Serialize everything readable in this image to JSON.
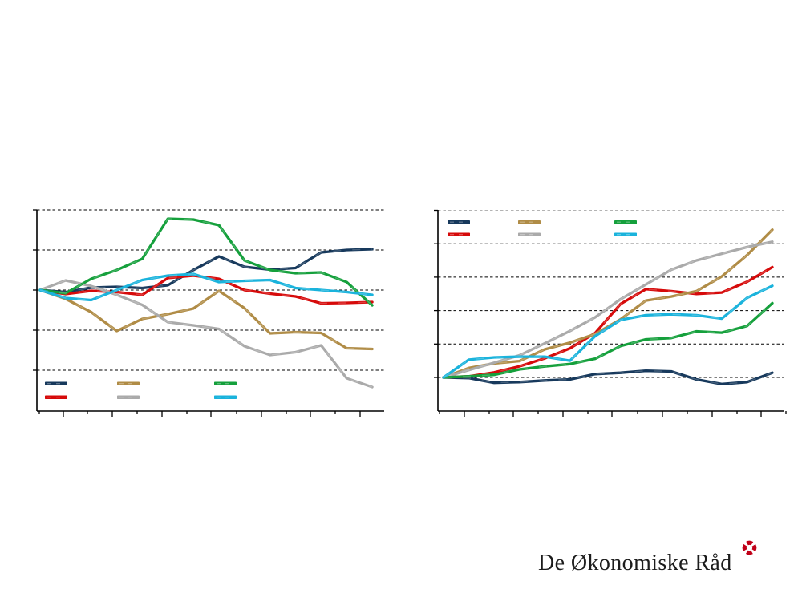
{
  "background_color": "#ffffff",
  "colors": {
    "dark_blue": "#17395c",
    "red": "#d60a0a",
    "tan": "#b08c46",
    "gray": "#aaaaaa",
    "green": "#15a03c",
    "cyan": "#1ab3dc"
  },
  "logo": {
    "text": "De Økonomiske Råd",
    "icon": "life-ring-icon",
    "icon_color": "#c00018",
    "text_color": "#1c1c1c"
  },
  "chart_data": [
    {
      "id": "left",
      "type": "line",
      "title": "",
      "xlabel": "",
      "ylabel": "",
      "x": [
        1,
        2,
        3,
        4,
        5,
        6,
        7,
        8,
        9,
        10,
        11,
        12,
        13,
        14
      ],
      "x_axis": {
        "tick_labels_visible": false,
        "major_tick_count": 7,
        "minor_tick_count": 7
      },
      "y_axis": {
        "tick_labels_visible": false,
        "unit": "gridline spacings relative to baseline",
        "gridlines_at_units": [
          2,
          1,
          0,
          -1,
          -2
        ],
        "gray_gridlines_at_units": []
      },
      "grid": "horizontal-dashed",
      "legend": {
        "position": "inside-bottom-left",
        "labels_visible": false,
        "entries": [
          "dark_blue",
          "red",
          "tan",
          "gray",
          "green",
          "cyan"
        ]
      },
      "note": "axes have tick marks but no visible numeric or text labels",
      "series": [
        {
          "name": "dark-blue",
          "color_key": "dark_blue",
          "values": [
            0,
            -0.05,
            0.06,
            0.08,
            0.05,
            0.12,
            0.5,
            0.84,
            0.58,
            0.51,
            0.55,
            0.94,
            1.0,
            1.02
          ]
        },
        {
          "name": "red",
          "color_key": "red",
          "values": [
            0,
            -0.1,
            -0.02,
            -0.05,
            -0.12,
            0.3,
            0.36,
            0.28,
            0.0,
            -0.09,
            -0.16,
            -0.33,
            -0.32,
            -0.3
          ]
        },
        {
          "name": "tan",
          "color_key": "tan",
          "values": [
            0,
            -0.22,
            -0.55,
            -1.02,
            -0.72,
            -0.6,
            -0.46,
            -0.02,
            -0.45,
            -1.08,
            -1.05,
            -1.07,
            -1.45,
            -1.47
          ]
        },
        {
          "name": "gray",
          "color_key": "gray",
          "values": [
            0,
            0.24,
            0.1,
            -0.12,
            -0.37,
            -0.8,
            -0.88,
            -0.97,
            -1.4,
            -1.62,
            -1.55,
            -1.38,
            -2.2,
            -2.42
          ]
        },
        {
          "name": "green",
          "color_key": "green",
          "values": [
            0,
            -0.08,
            0.28,
            0.5,
            0.78,
            1.78,
            1.76,
            1.62,
            0.74,
            0.5,
            0.42,
            0.44,
            0.2,
            -0.38
          ]
        },
        {
          "name": "cyan",
          "color_key": "cyan",
          "values": [
            0,
            -0.2,
            -0.25,
            0.0,
            0.25,
            0.36,
            0.4,
            0.2,
            0.23,
            0.25,
            0.05,
            0.0,
            -0.05,
            -0.12
          ]
        }
      ]
    },
    {
      "id": "right",
      "type": "line",
      "title": "",
      "xlabel": "",
      "ylabel": "",
      "x": [
        1,
        2,
        3,
        4,
        5,
        6,
        7,
        8,
        9,
        10,
        11,
        12,
        13,
        14
      ],
      "x_axis": {
        "tick_labels_visible": false,
        "major_tick_count": 7,
        "minor_tick_count": 8
      },
      "y_axis": {
        "tick_labels_visible": false,
        "unit": "gridline spacings relative to baseline",
        "gridlines_at_units": [
          5,
          4,
          3,
          2,
          1,
          0
        ],
        "gray_gridlines_at_units": [
          5
        ]
      },
      "grid": "horizontal-dashed",
      "legend": {
        "position": "inside-top-left",
        "labels_visible": false,
        "entries": [
          "dark_blue",
          "red",
          "tan",
          "gray",
          "green",
          "cyan"
        ]
      },
      "note": "axes have tick marks but no visible numeric or text labels",
      "series": [
        {
          "name": "dark-blue",
          "color_key": "dark_blue",
          "values": [
            0,
            -0.02,
            -0.16,
            -0.14,
            -0.09,
            -0.06,
            0.1,
            0.14,
            0.2,
            0.18,
            -0.06,
            -0.2,
            -0.14,
            0.14
          ]
        },
        {
          "name": "red",
          "color_key": "red",
          "values": [
            0,
            0.03,
            0.15,
            0.33,
            0.57,
            0.87,
            1.33,
            2.2,
            2.64,
            2.58,
            2.5,
            2.54,
            2.86,
            3.3
          ]
        },
        {
          "name": "tan",
          "color_key": "tan",
          "values": [
            0,
            0.28,
            0.42,
            0.49,
            0.84,
            1.04,
            1.3,
            1.74,
            2.3,
            2.42,
            2.58,
            3.02,
            3.66,
            4.42
          ]
        },
        {
          "name": "gray",
          "color_key": "gray",
          "values": [
            0,
            0.22,
            0.44,
            0.66,
            1.02,
            1.39,
            1.8,
            2.34,
            2.78,
            3.22,
            3.5,
            3.7,
            3.9,
            4.06
          ]
        },
        {
          "name": "green",
          "color_key": "green",
          "values": [
            0,
            0.03,
            0.08,
            0.24,
            0.33,
            0.4,
            0.56,
            0.94,
            1.14,
            1.18,
            1.38,
            1.34,
            1.54,
            2.22
          ]
        },
        {
          "name": "cyan",
          "color_key": "cyan",
          "values": [
            0,
            0.53,
            0.6,
            0.62,
            0.62,
            0.5,
            1.24,
            1.72,
            1.86,
            1.89,
            1.86,
            1.76,
            2.38,
            2.74
          ]
        }
      ]
    }
  ]
}
